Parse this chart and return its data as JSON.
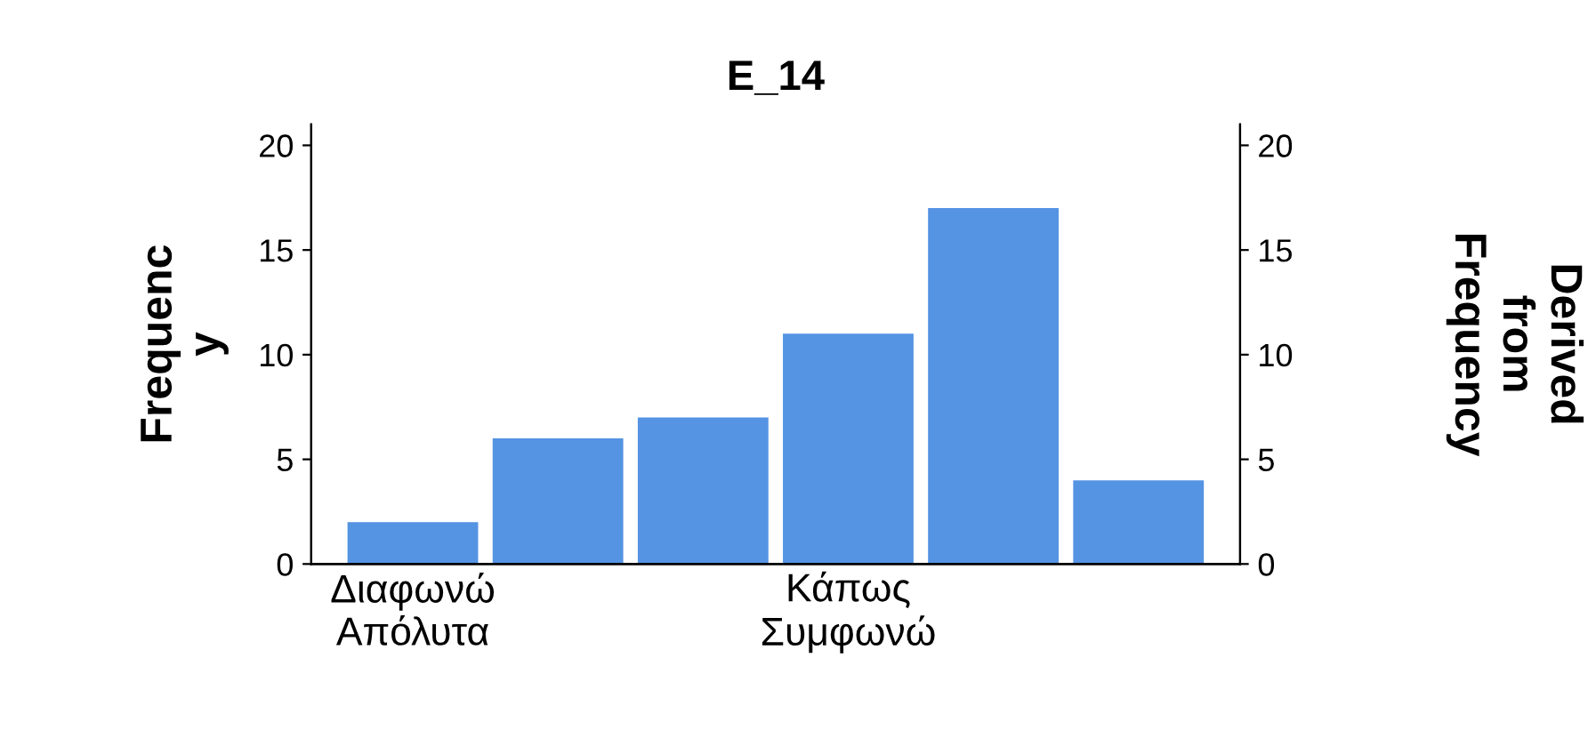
{
  "chart_data": {
    "type": "bar",
    "title": "E_14",
    "ylabel": "Frequenc\ny",
    "y2label": "Derived\nfrom\nFrequency",
    "categories": [
      "Διαφωνώ\nΑπόλυτα",
      null,
      null,
      "Κάπως\nΣυμφωνώ",
      null,
      null
    ],
    "values": [
      2,
      6,
      7,
      11,
      17,
      4
    ],
    "color": "#5593e3",
    "ylim": [
      0,
      21
    ],
    "yticks": [
      0,
      5,
      10,
      15,
      20
    ],
    "y2lim": [
      0,
      21
    ],
    "y2ticks": [
      0,
      5,
      10,
      15,
      20
    ],
    "grid": false,
    "legend": false
  }
}
